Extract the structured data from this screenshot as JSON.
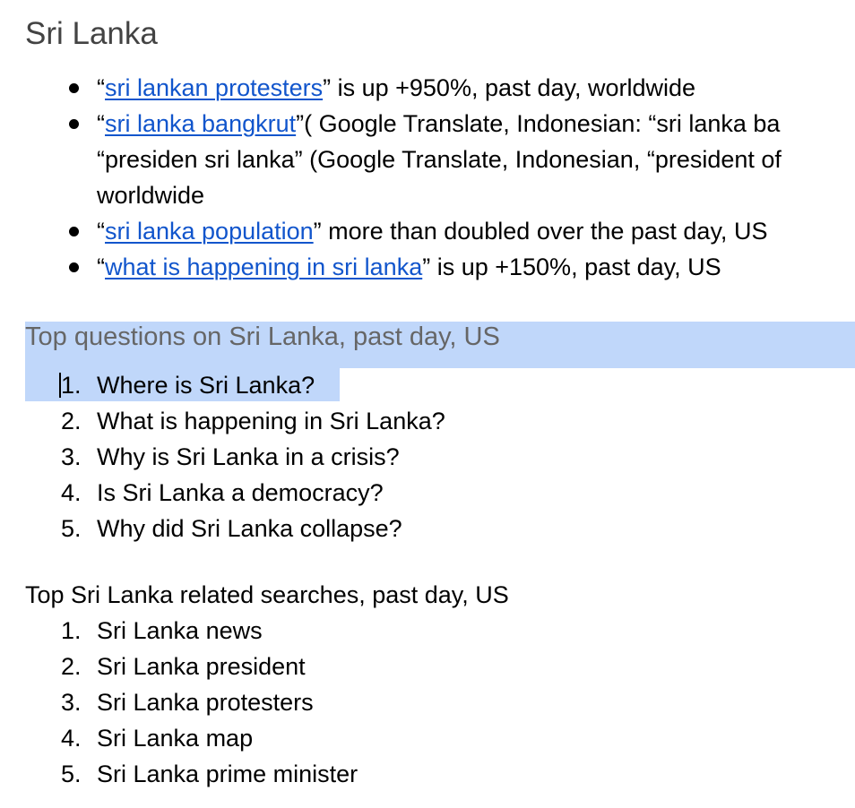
{
  "section_title": "Sri Lanka",
  "trends": [
    {
      "open_quote": "“",
      "link_text": "sri lankan protesters",
      "rest": "” is up +950%, past day, worldwide"
    },
    {
      "open_quote": "“",
      "link_text": "sri lanka bangkrut",
      "rest": "”( Google Translate, Indonesian: “sri lanka ba",
      "line2": "“presiden sri lanka” (Google Translate, Indonesian, “president of",
      "line3": "worldwide"
    },
    {
      "open_quote": "“",
      "link_text": "sri lanka population",
      "rest": "” more than doubled over the past day, US"
    },
    {
      "open_quote": "“",
      "link_text": "what is happening in sri lanka",
      "rest": "” is up +150%, past day, US"
    }
  ],
  "questions_heading": "Top questions on Sri Lanka, past day, US",
  "questions": [
    {
      "num": "1.",
      "text": "Where is Sri Lanka?"
    },
    {
      "num": "2.",
      "text": "What is happening in Sri Lanka?"
    },
    {
      "num": "3.",
      "text": "Why is Sri Lanka in a crisis?"
    },
    {
      "num": "4.",
      "text": "Is Sri Lanka a democracy?"
    },
    {
      "num": "5.",
      "text": "Why did Sri Lanka collapse?"
    }
  ],
  "searches_heading": "Top Sri Lanka related searches, past day, US",
  "searches": [
    {
      "num": "1.",
      "text": "Sri Lanka news"
    },
    {
      "num": "2.",
      "text": "Sri Lanka president"
    },
    {
      "num": "3.",
      "text": "Sri Lanka protesters"
    },
    {
      "num": "4.",
      "text": "Sri Lanka map"
    },
    {
      "num": "5.",
      "text": "Sri Lanka prime minister"
    }
  ],
  "colors": {
    "link": "#1155cc",
    "selection": "#c0d7fa",
    "heading_gray": "#666666",
    "title_gray": "#434343"
  }
}
